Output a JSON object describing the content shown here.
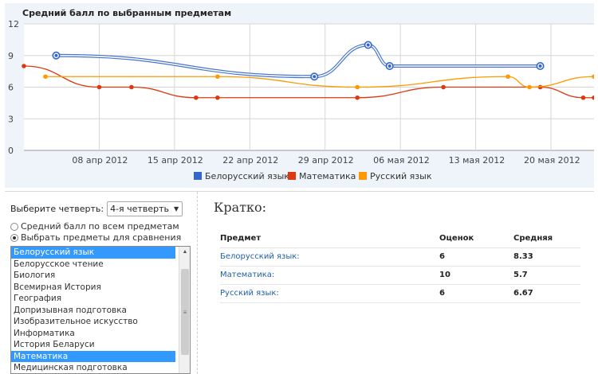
{
  "chart_data": {
    "type": "line",
    "title": "Средний балл по выбранным предметам",
    "ylim": [
      0,
      12
    ],
    "yticks": [
      0,
      3,
      6,
      9,
      12
    ],
    "xlim": [
      "2012-04-01",
      "2012-05-24"
    ],
    "xticks": [
      "2012-04-08",
      "2012-04-15",
      "2012-04-22",
      "2012-04-29",
      "2012-05-06",
      "2012-05-13",
      "2012-05-20"
    ],
    "xtick_labels": [
      "08 апр 2012",
      "15 апр 2012",
      "22 апр 2012",
      "29 апр 2012",
      "06 мая 2012",
      "13 мая 2012",
      "20 мая 2012"
    ],
    "grid": true,
    "legend": "bottom",
    "series": [
      {
        "name": "Белорусский язык",
        "color": "#3366cc",
        "x": [
          "2012-04-04",
          "2012-04-28",
          "2012-05-03",
          "2012-05-05",
          "2012-05-19"
        ],
        "values": [
          9,
          7,
          10,
          8,
          8
        ]
      },
      {
        "name": "Математика",
        "color": "#dc3912",
        "x": [
          "2012-04-01",
          "2012-04-08",
          "2012-04-11",
          "2012-04-17",
          "2012-04-19",
          "2012-05-02",
          "2012-05-10",
          "2012-05-19",
          "2012-05-23",
          "2012-05-24"
        ],
        "values": [
          8,
          6,
          6,
          5,
          5,
          5,
          6,
          6,
          5,
          5
        ]
      },
      {
        "name": "Русский язык",
        "color": "#ff9900",
        "x": [
          "2012-04-03",
          "2012-04-19",
          "2012-05-02",
          "2012-05-16",
          "2012-05-18",
          "2012-05-24"
        ],
        "values": [
          7,
          7,
          6,
          7,
          6,
          7
        ]
      }
    ]
  },
  "controls": {
    "quarter_label": "Выберите четверть:",
    "quarter_value": "4-я четверть",
    "radio_all": "Средний балл по всем предметам",
    "radio_compare": "Выбрать предметы для сравнения",
    "subjects": [
      {
        "label": "Белорусский язык",
        "selected": true
      },
      {
        "label": "Белорусское чтение",
        "selected": false
      },
      {
        "label": "Биология",
        "selected": false
      },
      {
        "label": "Всемирная История",
        "selected": false
      },
      {
        "label": "География",
        "selected": false
      },
      {
        "label": "Допризывная подготовка",
        "selected": false
      },
      {
        "label": "Изобразительное искусство",
        "selected": false
      },
      {
        "label": "Информатика",
        "selected": false
      },
      {
        "label": "История Беларуси",
        "selected": false
      },
      {
        "label": "Математика",
        "selected": true
      },
      {
        "label": "Медицинская подготовка",
        "selected": false
      }
    ]
  },
  "summary": {
    "title": "Кратко:",
    "headers": [
      "Предмет",
      "Оценок",
      "Средняя"
    ],
    "rows": [
      {
        "subject": "Белорусский язык:",
        "count": "6",
        "avg": "8.33"
      },
      {
        "subject": "Математика:",
        "count": "10",
        "avg": "5.7"
      },
      {
        "subject": "Русский язык:",
        "count": "6",
        "avg": "6.67"
      }
    ]
  }
}
